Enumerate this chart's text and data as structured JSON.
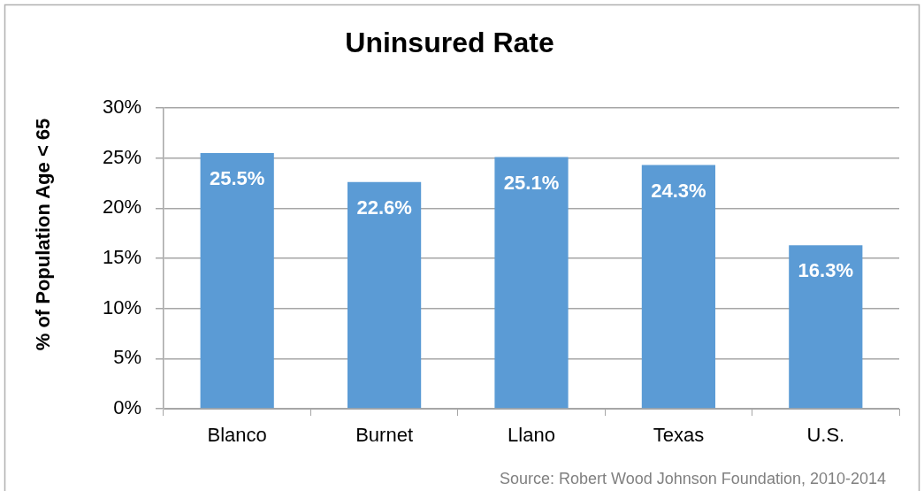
{
  "chart_data": {
    "type": "bar",
    "title": "Uninsured Rate",
    "ylabel": "% of Population Age < 65",
    "categories": [
      "Blanco",
      "Burnet",
      "Llano",
      "Texas",
      "U.S."
    ],
    "values": [
      25.5,
      22.6,
      25.1,
      24.3,
      16.3
    ],
    "color": "#5b9bd5",
    "value_labels": [
      "25.5%",
      "22.6%",
      "25.1%",
      "24.3%",
      "16.3%"
    ],
    "ylim": [
      0,
      30
    ],
    "yticks": [
      {
        "value": 0,
        "label": "0%"
      },
      {
        "value": 5,
        "label": "5%"
      },
      {
        "value": 10,
        "label": "10%"
      },
      {
        "value": 15,
        "label": "15%"
      },
      {
        "value": 20,
        "label": "20%"
      },
      {
        "value": 25,
        "label": "25%"
      },
      {
        "value": 30,
        "label": "30%"
      }
    ],
    "grid": "y",
    "annotations": [
      "Source: Robert Wood Johnson Foundation, 2010-2014"
    ]
  }
}
